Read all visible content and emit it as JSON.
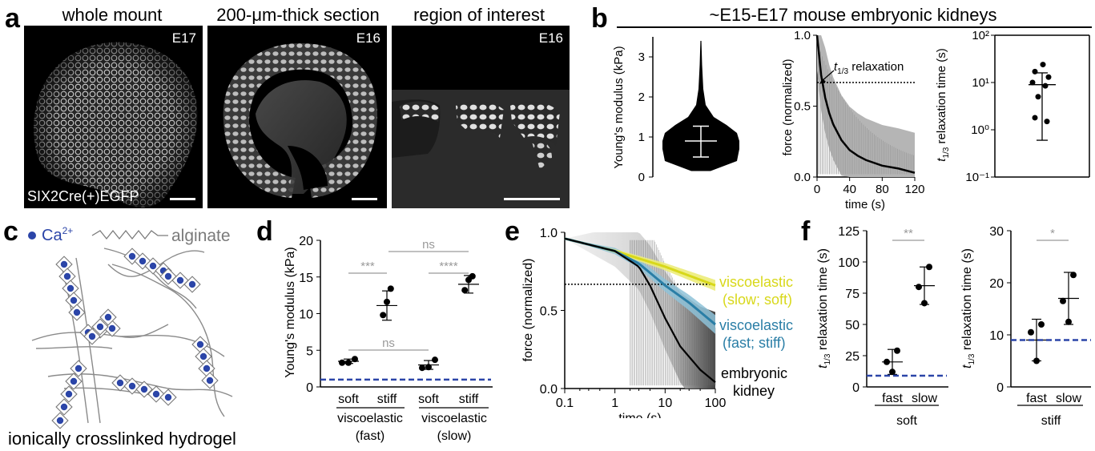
{
  "panels": {
    "a": {
      "label": "a",
      "images": [
        {
          "title": "whole mount",
          "stage": "E17",
          "caption": "SIX2Cre(+)EGFP"
        },
        {
          "title": "200-μm-thick section",
          "stage": "E16"
        },
        {
          "title": "region of interest",
          "stage": "E16"
        }
      ]
    },
    "b": {
      "label": "b",
      "title": "~E15-E17 mouse embryonic kidneys",
      "annotation_main": "t",
      "annotation_sub": "1/3",
      "annotation_rest": " relaxation",
      "ylabel_time_sub": "1/3"
    },
    "c": {
      "label": "c",
      "legend_ca": "Ca",
      "legend_ca_sup": "2+",
      "legend_alginate": "alginate",
      "caption": "ionically crosslinked hydrogel"
    },
    "d": {
      "label": "d",
      "group_labels": [
        "viscoelastic",
        "viscoelastic"
      ],
      "group_sub": [
        "(fast)",
        "(slow)"
      ],
      "sig": [
        "***",
        "ns",
        "****",
        "ns"
      ]
    },
    "e": {
      "label": "e",
      "series_labels": [
        {
          "line1": "viscoelastic",
          "line2": "(slow; soft)",
          "color": "#d8d81a"
        },
        {
          "line1": "viscoelastic",
          "line2": "(fast; stiff)",
          "color": "#2a7ea6"
        },
        {
          "line1": "embryonic",
          "line2": "kidney",
          "color": "#000000"
        }
      ]
    },
    "f": {
      "label": "f",
      "group_labels": [
        "soft",
        "stiff"
      ],
      "sig": [
        "**",
        "*"
      ]
    }
  },
  "chart_data": [
    {
      "id": "b-violin",
      "type": "scatter",
      "ylabel": "Young's modulus (kPa)",
      "ylim": [
        0,
        3.5
      ],
      "yticks": [
        0,
        1,
        2,
        3
      ],
      "mean": 0.9,
      "sd_low": 0.5,
      "sd_high": 1.27,
      "max": 3.4
    },
    {
      "id": "b-relax",
      "type": "line",
      "xlabel": "time (s)",
      "ylabel": "force (normalized)",
      "xlim": [
        0,
        120
      ],
      "ylim": [
        0,
        1.0
      ],
      "xticks": [
        0,
        40,
        80,
        120
      ],
      "yticks": [
        0.0,
        0.5,
        1.0
      ],
      "threshold": 0.667,
      "x": [
        0,
        5,
        10,
        15,
        20,
        30,
        40,
        50,
        60,
        80,
        100,
        120
      ],
      "y": [
        1.0,
        0.72,
        0.56,
        0.45,
        0.37,
        0.26,
        0.19,
        0.15,
        0.12,
        0.08,
        0.06,
        0.03
      ]
    },
    {
      "id": "b-t13",
      "type": "scatter",
      "ylabel": "relaxation time (s)",
      "ylim": [
        0.1,
        100
      ],
      "yscale": "log",
      "yticks": [
        "10⁻¹",
        "10⁰",
        "10¹",
        "10²"
      ],
      "values": [
        24,
        17,
        13,
        10,
        8.5,
        5,
        1.8,
        1.5
      ],
      "mean": 9,
      "sd_low": 0.6,
      "sd_high": 16
    },
    {
      "id": "d",
      "type": "scatter",
      "ylabel": "Young's modulus (kPa)",
      "ylim": [
        0,
        20
      ],
      "yticks": [
        0,
        5,
        10,
        15,
        20
      ],
      "categories": [
        "soft",
        "stiff",
        "soft",
        "stiff"
      ],
      "points": [
        [
          3.3,
          3.3,
          3.8
        ],
        [
          9.8,
          11.6,
          13.4
        ],
        [
          2.6,
          2.7,
          3.7
        ],
        [
          13.2,
          14.6,
          15.1
        ]
      ],
      "means": [
        3.5,
        11.1,
        3.0,
        14.0
      ],
      "sd": [
        0.3,
        2.0,
        0.6,
        1.2
      ],
      "reference": 1.0
    },
    {
      "id": "e",
      "type": "line",
      "xlabel": "time (s)",
      "ylabel": "force (normalized)",
      "xscale": "log",
      "xlim": [
        0.1,
        100
      ],
      "ylim": [
        0,
        1.0
      ],
      "xticks": [
        "0.1",
        "1",
        "10",
        "100"
      ],
      "yticks": [
        "0.0",
        "0.5",
        "1.0"
      ],
      "threshold": 0.667,
      "series": [
        {
          "name": "viscoelastic (slow; soft)",
          "x": [
            0.1,
            1,
            10,
            100
          ],
          "y": [
            0.96,
            0.88,
            0.78,
            0.66
          ]
        },
        {
          "name": "viscoelastic (fast; stiff)",
          "x": [
            0.1,
            1,
            3,
            10,
            30,
            100
          ],
          "y": [
            0.96,
            0.88,
            0.8,
            0.66,
            0.55,
            0.41
          ]
        },
        {
          "name": "embryonic kidney",
          "x": [
            0.1,
            1,
            3,
            5,
            10,
            20,
            50,
            100
          ],
          "y": [
            0.96,
            0.88,
            0.78,
            0.66,
            0.45,
            0.27,
            0.12,
            0.04
          ]
        }
      ]
    },
    {
      "id": "f-soft",
      "type": "scatter",
      "ylabel": "relaxation time (s)",
      "ylim": [
        0,
        125
      ],
      "yticks": [
        0,
        25,
        50,
        75,
        100,
        125
      ],
      "categories": [
        "fast",
        "slow"
      ],
      "points": [
        [
          12,
          20,
          29
        ],
        [
          67,
          80,
          96
        ]
      ],
      "means": [
        20,
        81
      ],
      "sd": [
        10,
        15
      ],
      "reference": 9
    },
    {
      "id": "f-stiff",
      "type": "scatter",
      "ylabel": "relaxation time (s)",
      "ylim": [
        0,
        30
      ],
      "yticks": [
        0,
        10,
        20,
        30
      ],
      "categories": [
        "fast",
        "slow"
      ],
      "points": [
        [
          5,
          10.5,
          12
        ],
        [
          12.5,
          16.5,
          21.5
        ]
      ],
      "means": [
        9,
        17
      ],
      "sd": [
        4,
        5
      ],
      "reference": 9
    }
  ]
}
